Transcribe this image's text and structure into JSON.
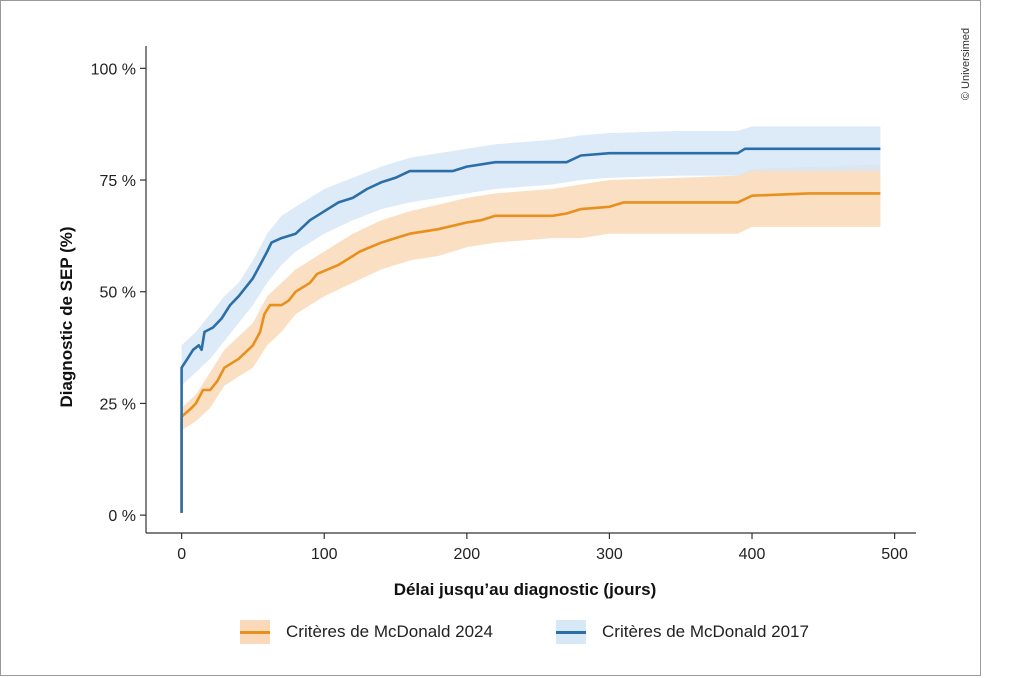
{
  "credit": "© Universimed",
  "chart_data": {
    "type": "line",
    "xlabel": "Délai jusqu’au diagnostic (jours)",
    "ylabel": "Diagnostic de SEP (%)",
    "xlim": [
      -25,
      515
    ],
    "ylim": [
      -4,
      105
    ],
    "x_ticks": [
      0,
      100,
      200,
      300,
      400,
      500
    ],
    "y_ticks": [
      0,
      25,
      50,
      75,
      100
    ],
    "y_tick_labels": [
      "0 %",
      "25 %",
      "50 %",
      "75 %",
      "100 %"
    ],
    "grid": false,
    "legend_position": "bottom",
    "series": [
      {
        "name": "Critères de McDonald 2024",
        "color": "#e8901e",
        "band_color": "#fad9b9",
        "points": [
          [
            0,
            0.5
          ],
          [
            0,
            22
          ],
          [
            7,
            24
          ],
          [
            10,
            25
          ],
          [
            15,
            28
          ],
          [
            20,
            28
          ],
          [
            25,
            30
          ],
          [
            30,
            33
          ],
          [
            40,
            35
          ],
          [
            50,
            38
          ],
          [
            55,
            41
          ],
          [
            58,
            45
          ],
          [
            62,
            47
          ],
          [
            70,
            47
          ],
          [
            75,
            48
          ],
          [
            80,
            50
          ],
          [
            90,
            52
          ],
          [
            95,
            54
          ],
          [
            110,
            56
          ],
          [
            120,
            58
          ],
          [
            125,
            59
          ],
          [
            140,
            61
          ],
          [
            150,
            62
          ],
          [
            160,
            63
          ],
          [
            180,
            64
          ],
          [
            200,
            65.5
          ],
          [
            210,
            66
          ],
          [
            220,
            67
          ],
          [
            260,
            67
          ],
          [
            270,
            67.5
          ],
          [
            275,
            68
          ],
          [
            280,
            68.5
          ],
          [
            300,
            69
          ],
          [
            310,
            70
          ],
          [
            390,
            70
          ],
          [
            400,
            71.5
          ],
          [
            440,
            72
          ],
          [
            490,
            72
          ]
        ],
        "lower": [
          [
            0,
            19
          ],
          [
            10,
            21
          ],
          [
            20,
            24
          ],
          [
            30,
            29
          ],
          [
            40,
            31
          ],
          [
            50,
            33
          ],
          [
            60,
            38
          ],
          [
            70,
            41
          ],
          [
            80,
            45
          ],
          [
            90,
            47
          ],
          [
            100,
            49
          ],
          [
            120,
            52
          ],
          [
            140,
            55
          ],
          [
            160,
            57
          ],
          [
            180,
            58
          ],
          [
            200,
            60
          ],
          [
            220,
            61
          ],
          [
            260,
            62
          ],
          [
            280,
            62
          ],
          [
            300,
            63
          ],
          [
            350,
            63
          ],
          [
            390,
            63
          ],
          [
            400,
            64.5
          ],
          [
            490,
            64.5
          ]
        ],
        "upper": [
          [
            0,
            24
          ],
          [
            10,
            27
          ],
          [
            20,
            32
          ],
          [
            30,
            37
          ],
          [
            40,
            40
          ],
          [
            50,
            43
          ],
          [
            60,
            49
          ],
          [
            70,
            52
          ],
          [
            80,
            55
          ],
          [
            90,
            57
          ],
          [
            100,
            59
          ],
          [
            120,
            63
          ],
          [
            140,
            66
          ],
          [
            160,
            68
          ],
          [
            180,
            69.5
          ],
          [
            200,
            71
          ],
          [
            220,
            72
          ],
          [
            260,
            73
          ],
          [
            280,
            74
          ],
          [
            300,
            75
          ],
          [
            350,
            75.5
          ],
          [
            390,
            76
          ],
          [
            400,
            77.5
          ],
          [
            490,
            78.5
          ]
        ]
      },
      {
        "name": "Critères de McDonald 2017",
        "color": "#2b6ea8",
        "band_color": "#d7e8f7",
        "points": [
          [
            0,
            0.5
          ],
          [
            0,
            33
          ],
          [
            4,
            35
          ],
          [
            8,
            37
          ],
          [
            12,
            38
          ],
          [
            14,
            37
          ],
          [
            16,
            41
          ],
          [
            22,
            42
          ],
          [
            28,
            44
          ],
          [
            34,
            47
          ],
          [
            40,
            49
          ],
          [
            50,
            53
          ],
          [
            55,
            56
          ],
          [
            60,
            59
          ],
          [
            63,
            61
          ],
          [
            70,
            62
          ],
          [
            80,
            63
          ],
          [
            90,
            66
          ],
          [
            100,
            68
          ],
          [
            110,
            70
          ],
          [
            120,
            71
          ],
          [
            130,
            73
          ],
          [
            140,
            74.5
          ],
          [
            150,
            75.5
          ],
          [
            160,
            77
          ],
          [
            190,
            77
          ],
          [
            200,
            78
          ],
          [
            220,
            79
          ],
          [
            270,
            79
          ],
          [
            280,
            80.5
          ],
          [
            300,
            81
          ],
          [
            340,
            81
          ],
          [
            390,
            81
          ],
          [
            395,
            82
          ],
          [
            490,
            82
          ]
        ],
        "lower": [
          [
            0,
            29
          ],
          [
            10,
            32
          ],
          [
            20,
            35
          ],
          [
            30,
            39
          ],
          [
            40,
            43
          ],
          [
            50,
            47
          ],
          [
            60,
            52
          ],
          [
            70,
            56
          ],
          [
            80,
            59
          ],
          [
            90,
            61
          ],
          [
            100,
            63
          ],
          [
            120,
            66
          ],
          [
            140,
            68.5
          ],
          [
            160,
            70
          ],
          [
            180,
            71
          ],
          [
            200,
            72
          ],
          [
            220,
            73
          ],
          [
            260,
            74
          ],
          [
            280,
            75
          ],
          [
            300,
            75.5
          ],
          [
            350,
            76
          ],
          [
            390,
            76
          ],
          [
            400,
            77
          ],
          [
            490,
            77
          ]
        ],
        "upper": [
          [
            0,
            38
          ],
          [
            10,
            41
          ],
          [
            20,
            45
          ],
          [
            30,
            49
          ],
          [
            40,
            52
          ],
          [
            50,
            57
          ],
          [
            60,
            63
          ],
          [
            70,
            67
          ],
          [
            80,
            69
          ],
          [
            90,
            71
          ],
          [
            100,
            73
          ],
          [
            120,
            75.5
          ],
          [
            140,
            78
          ],
          [
            160,
            80
          ],
          [
            180,
            81
          ],
          [
            200,
            82
          ],
          [
            220,
            83
          ],
          [
            260,
            84
          ],
          [
            280,
            85
          ],
          [
            300,
            85.5
          ],
          [
            350,
            86
          ],
          [
            390,
            86
          ],
          [
            400,
            87
          ],
          [
            490,
            87
          ]
        ]
      }
    ]
  }
}
